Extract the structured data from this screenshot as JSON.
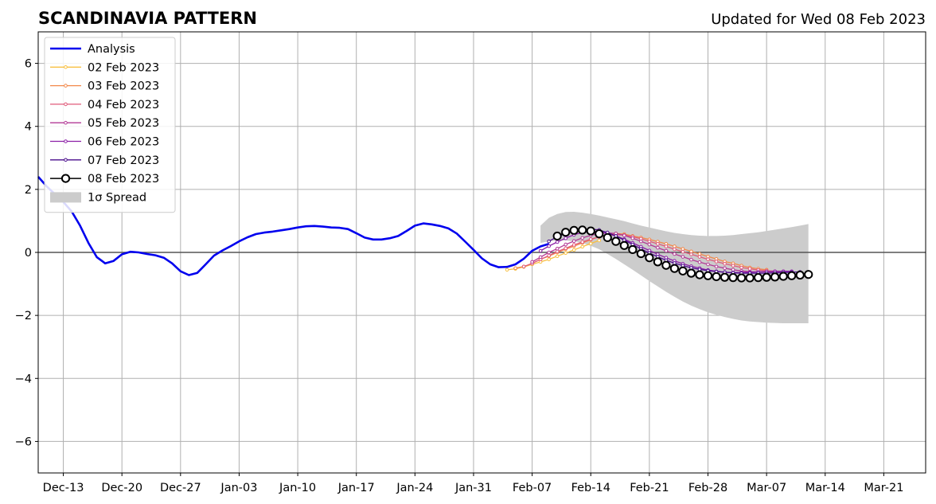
{
  "chart_data": {
    "type": "line",
    "title": "SCANDINAVIA PATTERN",
    "subtitle": "Updated for Wed 08 Feb 2023",
    "xlabel": "",
    "ylabel": "",
    "x_axis": {
      "type": "date",
      "range": [
        "2022-12-10",
        "2023-03-26"
      ],
      "tick_labels": [
        "Dec-13",
        "Dec-20",
        "Dec-27",
        "Jan-03",
        "Jan-10",
        "Jan-17",
        "Jan-24",
        "Jan-31",
        "Feb-07",
        "Feb-14",
        "Feb-21",
        "Feb-28",
        "Mar-07",
        "Mar-14",
        "Mar-21"
      ],
      "tick_dates": [
        "2022-12-13",
        "2022-12-20",
        "2022-12-27",
        "2023-01-03",
        "2023-01-10",
        "2023-01-17",
        "2023-01-24",
        "2023-01-31",
        "2023-02-07",
        "2023-02-14",
        "2023-02-21",
        "2023-02-28",
        "2023-03-07",
        "2023-03-14",
        "2023-03-21"
      ]
    },
    "y_axis": {
      "range": [
        -7,
        7
      ],
      "ticks": [
        6,
        4,
        2,
        0,
        -2,
        -4,
        -6
      ],
      "tick_labels": [
        "6",
        "4",
        "2",
        "0",
        "−2",
        "−4",
        "−6"
      ]
    },
    "grid": true,
    "legend_position": "top-left",
    "analysis": {
      "name": "Analysis",
      "color": "#0000ee",
      "start_date": "2022-12-10",
      "values": [
        2.4,
        2.1,
        1.85,
        1.6,
        1.3,
        0.85,
        0.3,
        -0.15,
        -0.35,
        -0.27,
        -0.06,
        0.02,
        0.0,
        -0.05,
        -0.09,
        -0.17,
        -0.35,
        -0.6,
        -0.72,
        -0.65,
        -0.38,
        -0.1,
        0.06,
        0.2,
        0.35,
        0.48,
        0.58,
        0.63,
        0.66,
        0.7,
        0.74,
        0.79,
        0.83,
        0.84,
        0.82,
        0.79,
        0.78,
        0.74,
        0.61,
        0.47,
        0.41,
        0.41,
        0.45,
        0.52,
        0.68,
        0.85,
        0.92,
        0.89,
        0.84,
        0.76,
        0.6,
        0.34,
        0.08,
        -0.19,
        -0.38,
        -0.47,
        -0.46,
        -0.38,
        -0.2,
        0.05,
        0.19,
        0.27
      ]
    },
    "forecasts": [
      {
        "name": "02 Feb 2023",
        "color": "#f8c042",
        "start_date": "2023-02-04",
        "values": [
          -0.55,
          -0.52,
          -0.46,
          -0.38,
          -0.3,
          -0.22,
          -0.12,
          -0.02,
          0.08,
          0.18,
          0.28,
          0.38
        ]
      },
      {
        "name": "03 Feb 2023",
        "color": "#f2884a",
        "start_date": "2023-02-05",
        "values": [
          -0.5,
          -0.45,
          -0.35,
          -0.22,
          -0.12,
          0.0,
          0.1,
          0.2,
          0.3,
          0.4,
          0.5,
          0.55,
          0.6,
          0.58,
          0.52,
          0.47,
          0.41,
          0.34,
          0.27,
          0.19,
          0.11,
          0.03,
          -0.05,
          -0.13,
          -0.21,
          -0.29,
          -0.35,
          -0.42,
          -0.48,
          -0.52,
          -0.55
        ]
      },
      {
        "name": "04 Feb 2023",
        "color": "#e05a7a",
        "start_date": "2023-02-06",
        "values": [
          -0.45,
          -0.35,
          -0.22,
          -0.1,
          0.03,
          0.13,
          0.24,
          0.33,
          0.42,
          0.49,
          0.54,
          0.56,
          0.55,
          0.5,
          0.43,
          0.35,
          0.27,
          0.19,
          0.1,
          0.02,
          -0.06,
          -0.14,
          -0.22,
          -0.29,
          -0.36,
          -0.42,
          -0.48,
          -0.52,
          -0.56,
          -0.58,
          -0.6
        ]
      },
      {
        "name": "05 Feb 2023",
        "color": "#b33a96",
        "start_date": "2023-02-07",
        "values": [
          -0.3,
          -0.15,
          0.0,
          0.12,
          0.25,
          0.36,
          0.46,
          0.54,
          0.6,
          0.62,
          0.6,
          0.54,
          0.45,
          0.35,
          0.25,
          0.15,
          0.05,
          -0.05,
          -0.14,
          -0.23,
          -0.31,
          -0.38,
          -0.45,
          -0.5,
          -0.55,
          -0.59,
          -0.61,
          -0.62,
          -0.62,
          -0.62,
          -0.6
        ]
      },
      {
        "name": "06 Feb 2023",
        "color": "#8b1ea6",
        "start_date": "2023-02-08",
        "values": [
          0.05,
          0.2,
          0.33,
          0.45,
          0.56,
          0.63,
          0.67,
          0.66,
          0.6,
          0.52,
          0.42,
          0.3,
          0.18,
          0.06,
          -0.06,
          -0.17,
          -0.27,
          -0.36,
          -0.44,
          -0.5,
          -0.56,
          -0.6,
          -0.63,
          -0.64,
          -0.64,
          -0.63,
          -0.62,
          -0.61,
          -0.6,
          -0.6,
          -0.6
        ]
      },
      {
        "name": "07 Feb 2023",
        "color": "#4a0c8c",
        "start_date": "2023-02-09",
        "values": [
          0.35,
          0.5,
          0.6,
          0.67,
          0.72,
          0.74,
          0.71,
          0.63,
          0.52,
          0.39,
          0.25,
          0.11,
          -0.02,
          -0.14,
          -0.25,
          -0.34,
          -0.42,
          -0.49,
          -0.54,
          -0.58,
          -0.61,
          -0.63,
          -0.65,
          -0.66,
          -0.66,
          -0.66,
          -0.66,
          -0.65,
          -0.64,
          -0.63,
          -0.62
        ]
      }
    ],
    "latest": {
      "name": "08 Feb 2023",
      "color": "#000000",
      "marker": "open-circle",
      "start_date": "2023-02-10",
      "values": [
        0.52,
        0.64,
        0.7,
        0.71,
        0.68,
        0.59,
        0.47,
        0.35,
        0.22,
        0.09,
        -0.04,
        -0.17,
        -0.3,
        -0.41,
        -0.51,
        -0.59,
        -0.66,
        -0.71,
        -0.74,
        -0.77,
        -0.79,
        -0.8,
        -0.81,
        -0.81,
        -0.8,
        -0.79,
        -0.78,
        -0.76,
        -0.74,
        -0.72,
        -0.7
      ]
    },
    "spread": {
      "name": "1σ Spread",
      "color": "#cccccc",
      "start_date": "2023-02-08",
      "upper": [
        0.85,
        1.1,
        1.22,
        1.28,
        1.29,
        1.26,
        1.22,
        1.17,
        1.11,
        1.05,
        0.99,
        0.92,
        0.85,
        0.79,
        0.73,
        0.67,
        0.62,
        0.58,
        0.55,
        0.53,
        0.52,
        0.52,
        0.53,
        0.55,
        0.58,
        0.61,
        0.64,
        0.68,
        0.72,
        0.76,
        0.8,
        0.85,
        0.9
      ],
      "lower": [
        0.3,
        0.35,
        0.38,
        0.38,
        0.35,
        0.3,
        0.21,
        0.1,
        -0.05,
        -0.21,
        -0.38,
        -0.55,
        -0.73,
        -0.91,
        -1.08,
        -1.25,
        -1.41,
        -1.56,
        -1.69,
        -1.8,
        -1.9,
        -1.98,
        -2.05,
        -2.11,
        -2.16,
        -2.19,
        -2.21,
        -2.23,
        -2.24,
        -2.25,
        -2.25,
        -2.25,
        -2.25
      ]
    }
  }
}
